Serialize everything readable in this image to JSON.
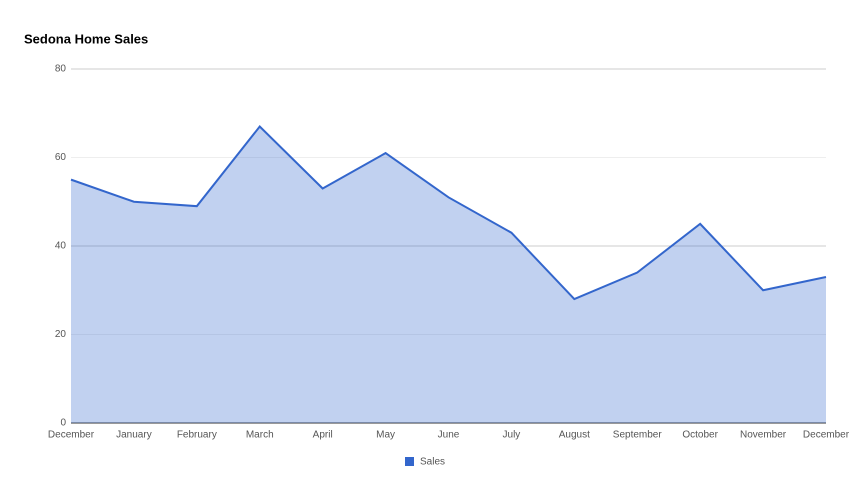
{
  "chart_data": {
    "type": "area",
    "title": "Sedona Home Sales",
    "categories": [
      "December",
      "January",
      "February",
      "March",
      "April",
      "May",
      "June",
      "July",
      "August",
      "September",
      "October",
      "November",
      "December"
    ],
    "series": [
      {
        "name": "Sales",
        "color": "#3366cc",
        "values": [
          55,
          50,
          49,
          67,
          53,
          61,
          51,
          43,
          28,
          34,
          45,
          30,
          33
        ]
      }
    ],
    "ylim": [
      0,
      80
    ],
    "yticks": [
      0,
      20,
      40,
      60,
      80
    ],
    "grid": true,
    "legend": "bottom"
  }
}
